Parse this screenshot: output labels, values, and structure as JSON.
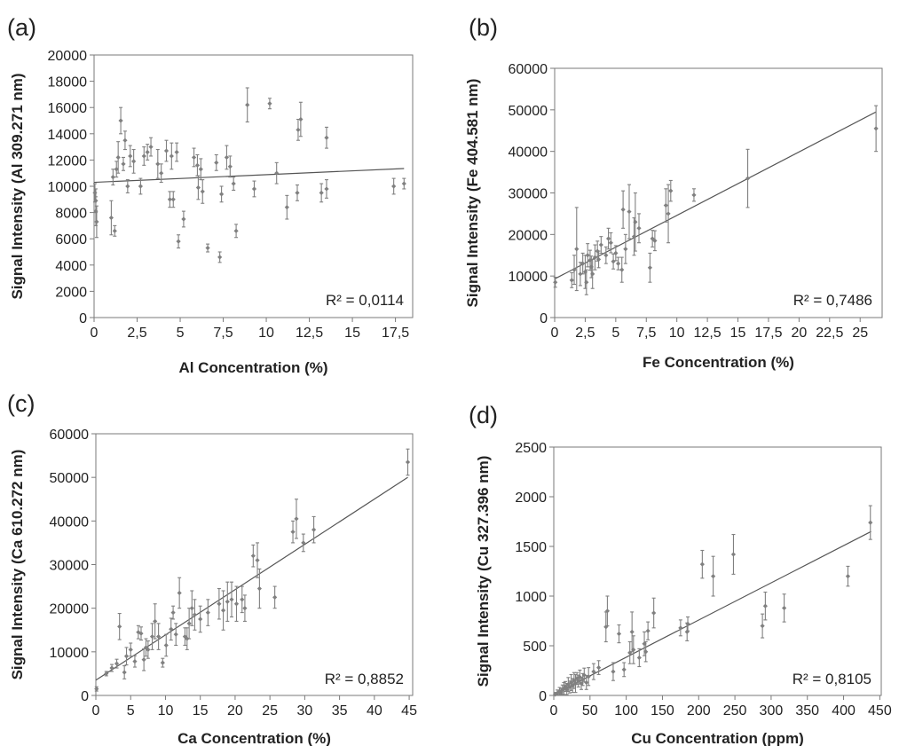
{
  "colors": {
    "marker": "#808080",
    "line": "#555555",
    "axis": "#7a7a7a",
    "text": "#222222"
  },
  "chart_data": [
    {
      "panel": "(a)",
      "type": "scatter",
      "xlabel": "Al Concentration (%)",
      "ylabel": "Signal Intensity (Al 309.271 nm)",
      "xlim": [
        0,
        18.5
      ],
      "ylim": [
        0,
        20000
      ],
      "xticks": [
        0,
        2.5,
        5,
        7.5,
        10,
        12.5,
        15,
        17.5
      ],
      "xtick_labels": [
        "0",
        "2,5",
        "5",
        "7,5",
        "10",
        "12,5",
        "15",
        "17,5"
      ],
      "yticks": [
        0,
        2000,
        4000,
        6000,
        8000,
        10000,
        12000,
        14000,
        16000,
        18000,
        20000
      ],
      "ytick_labels": [
        "0",
        "2000",
        "4000",
        "6000",
        "8000",
        "10000",
        "12000",
        "14000",
        "16000",
        "18000",
        "20000"
      ],
      "r2_label": "R² = 0,0114",
      "trendline": {
        "x": [
          0,
          18
        ],
        "y": [
          10300,
          11350
        ]
      },
      "points": [
        [
          0.05,
          9500,
          700
        ],
        [
          0.1,
          8900,
          900
        ],
        [
          0.1,
          8100,
          1100
        ],
        [
          0.15,
          7300,
          1200
        ],
        [
          1.0,
          7600,
          1300
        ],
        [
          1.1,
          10700,
          600
        ],
        [
          1.2,
          6600,
          400
        ],
        [
          1.3,
          11300,
          600
        ],
        [
          1.4,
          12200,
          1200
        ],
        [
          1.55,
          15000,
          1000
        ],
        [
          1.7,
          11700,
          500
        ],
        [
          1.8,
          13500,
          700
        ],
        [
          1.95,
          10000,
          500
        ],
        [
          2.1,
          12300,
          800
        ],
        [
          2.3,
          11900,
          900
        ],
        [
          2.7,
          10000,
          600
        ],
        [
          2.9,
          12300,
          700
        ],
        [
          3.1,
          12600,
          600
        ],
        [
          3.3,
          13000,
          700
        ],
        [
          3.7,
          11700,
          1100
        ],
        [
          3.9,
          11000,
          700
        ],
        [
          4.2,
          12700,
          800
        ],
        [
          4.4,
          9000,
          600
        ],
        [
          4.5,
          12300,
          1000
        ],
        [
          4.6,
          9000,
          600
        ],
        [
          4.8,
          12600,
          700
        ],
        [
          4.9,
          5800,
          500
        ],
        [
          5.2,
          7500,
          600
        ],
        [
          5.8,
          12200,
          700
        ],
        [
          6.0,
          11600,
          800
        ],
        [
          6.05,
          9900,
          900
        ],
        [
          6.2,
          11300,
          800
        ],
        [
          6.3,
          9600,
          900
        ],
        [
          6.6,
          5300,
          300
        ],
        [
          7.1,
          11800,
          600
        ],
        [
          7.3,
          4600,
          400
        ],
        [
          7.4,
          9400,
          600
        ],
        [
          7.7,
          12200,
          900
        ],
        [
          7.9,
          11500,
          800
        ],
        [
          8.1,
          10200,
          500
        ],
        [
          8.25,
          6600,
          500
        ],
        [
          8.9,
          16200,
          1300
        ],
        [
          9.3,
          9800,
          600
        ],
        [
          10.2,
          16300,
          400
        ],
        [
          10.6,
          11000,
          800
        ],
        [
          11.2,
          8400,
          900
        ],
        [
          11.8,
          9500,
          600
        ],
        [
          11.85,
          14300,
          800
        ],
        [
          12.0,
          15100,
          1300
        ],
        [
          13.2,
          9500,
          700
        ],
        [
          13.5,
          9800,
          700
        ],
        [
          13.5,
          13700,
          800
        ],
        [
          17.4,
          10000,
          600
        ],
        [
          18.0,
          10200,
          400
        ]
      ]
    },
    {
      "panel": "(b)",
      "type": "scatter",
      "xlabel": "Fe Concentration (%)",
      "ylabel": "Signal Intensity (Fe 404.581 nm)",
      "xlim": [
        0,
        26.8
      ],
      "ylim": [
        0,
        60000
      ],
      "xticks": [
        0,
        2.5,
        5,
        7.5,
        10,
        12.5,
        15,
        17.5,
        20,
        22.5,
        25
      ],
      "xtick_labels": [
        "0",
        "2,5",
        "5",
        "7,5",
        "10",
        "12,5",
        "15",
        "17,5",
        "20",
        "22,5",
        "25"
      ],
      "yticks": [
        0,
        10000,
        20000,
        30000,
        40000,
        50000,
        60000
      ],
      "ytick_labels": [
        "0",
        "10000",
        "20000",
        "30000",
        "40000",
        "50000",
        "60000"
      ],
      "r2_label": "R² = 0,7486",
      "trendline": {
        "x": [
          0,
          26.3
        ],
        "y": [
          9300,
          49500
        ]
      },
      "points": [
        [
          0.05,
          8500,
          1200
        ],
        [
          1.4,
          9000,
          1800
        ],
        [
          1.6,
          11500,
          3500
        ],
        [
          1.8,
          16500,
          10000
        ],
        [
          2.1,
          10500,
          2800
        ],
        [
          2.3,
          13000,
          2500
        ],
        [
          2.5,
          11000,
          4000
        ],
        [
          2.6,
          8500,
          3000
        ],
        [
          2.7,
          15000,
          2800
        ],
        [
          2.9,
          13800,
          2400
        ],
        [
          3.0,
          12200,
          2600
        ],
        [
          3.1,
          10500,
          3500
        ],
        [
          3.3,
          14500,
          3000
        ],
        [
          3.5,
          16000,
          2400
        ],
        [
          3.6,
          14000,
          2000
        ],
        [
          3.8,
          17500,
          2000
        ],
        [
          4.2,
          15000,
          2000
        ],
        [
          4.4,
          19000,
          2500
        ],
        [
          4.6,
          18000,
          2400
        ],
        [
          4.8,
          13500,
          1800
        ],
        [
          5.0,
          15500,
          1800
        ],
        [
          5.2,
          13000,
          1500
        ],
        [
          5.5,
          11500,
          3000
        ],
        [
          5.6,
          26000,
          4500
        ],
        [
          5.8,
          16500,
          3500
        ],
        [
          6.1,
          25500,
          6500
        ],
        [
          6.5,
          19500,
          4500
        ],
        [
          6.6,
          23000,
          7000
        ],
        [
          6.9,
          21500,
          3500
        ],
        [
          7.8,
          12000,
          3500
        ],
        [
          8.0,
          19000,
          2000
        ],
        [
          8.2,
          18500,
          2400
        ],
        [
          9.1,
          27000,
          4000
        ],
        [
          9.3,
          25000,
          7000
        ],
        [
          9.5,
          30500,
          2500
        ],
        [
          11.4,
          29500,
          1500
        ],
        [
          15.8,
          33500,
          7000
        ],
        [
          26.3,
          45500,
          5500
        ]
      ]
    },
    {
      "panel": "(c)",
      "type": "scatter",
      "xlabel": "Ca Concentration (%)",
      "ylabel": "Signal Intensity (Ca 610.272 nm)",
      "xlim": [
        0,
        45.5
      ],
      "ylim": [
        0,
        60000
      ],
      "xticks": [
        0,
        5,
        10,
        15,
        20,
        25,
        30,
        35,
        40,
        45
      ],
      "xtick_labels": [
        "0",
        "5",
        "10",
        "15",
        "20",
        "25",
        "30",
        "35",
        "40",
        "45"
      ],
      "yticks": [
        0,
        10000,
        20000,
        30000,
        40000,
        50000,
        60000
      ],
      "ytick_labels": [
        "0",
        "10000",
        "20000",
        "30000",
        "40000",
        "50000",
        "60000"
      ],
      "r2_label": "R² = 0,8852",
      "trendline": {
        "x": [
          0,
          44.8
        ],
        "y": [
          3500,
          50000
        ]
      },
      "points": [
        [
          0.1,
          1500,
          500
        ],
        [
          1.5,
          5000,
          500
        ],
        [
          2.3,
          6300,
          800
        ],
        [
          3.0,
          7300,
          1000
        ],
        [
          3.4,
          15800,
          3000
        ],
        [
          4.1,
          5300,
          1500
        ],
        [
          4.4,
          9000,
          2000
        ],
        [
          5.0,
          10500,
          1500
        ],
        [
          5.6,
          7800,
          1300
        ],
        [
          6.1,
          14500,
          1500
        ],
        [
          6.5,
          14200,
          1500
        ],
        [
          6.9,
          8200,
          2500
        ],
        [
          7.2,
          11000,
          2000
        ],
        [
          7.5,
          10500,
          2000
        ],
        [
          8.1,
          13500,
          3000
        ],
        [
          8.5,
          17000,
          4000
        ],
        [
          9.0,
          13500,
          3000
        ],
        [
          9.6,
          7500,
          1000
        ],
        [
          10.1,
          11500,
          2500
        ],
        [
          10.8,
          15200,
          2500
        ],
        [
          11.1,
          19000,
          1500
        ],
        [
          11.5,
          14000,
          2500
        ],
        [
          12.0,
          23500,
          3500
        ],
        [
          12.8,
          13500,
          2000
        ],
        [
          13.1,
          13000,
          2500
        ],
        [
          13.4,
          16500,
          3500
        ],
        [
          13.8,
          20000,
          4000
        ],
        [
          14.2,
          18500,
          3500
        ],
        [
          15.0,
          17500,
          3000
        ],
        [
          16.1,
          19000,
          3000
        ],
        [
          17.7,
          21000,
          3500
        ],
        [
          18.3,
          19500,
          4500
        ],
        [
          18.9,
          21500,
          4500
        ],
        [
          19.5,
          22000,
          4000
        ],
        [
          20.2,
          21000,
          4000
        ],
        [
          21.0,
          22000,
          3000
        ],
        [
          21.4,
          20000,
          3000
        ],
        [
          22.6,
          32000,
          2500
        ],
        [
          23.2,
          31000,
          4000
        ],
        [
          23.5,
          24500,
          4500
        ],
        [
          25.7,
          22500,
          2500
        ],
        [
          28.3,
          37500,
          2500
        ],
        [
          28.8,
          40500,
          4500
        ],
        [
          29.8,
          35000,
          2000
        ],
        [
          31.3,
          38000,
          3000
        ],
        [
          44.8,
          53500,
          3000
        ]
      ]
    },
    {
      "panel": "(d)",
      "type": "scatter",
      "xlabel": "Cu Concentration (ppm)",
      "ylabel": "Signal Intensity (Cu 327.396 nm)",
      "xlim": [
        0,
        452
      ],
      "ylim": [
        0,
        2500
      ],
      "xticks": [
        0,
        50,
        100,
        150,
        200,
        250,
        300,
        350,
        400,
        450
      ],
      "xtick_labels": [
        "0",
        "50",
        "100",
        "150",
        "200",
        "250",
        "300",
        "350",
        "400",
        "450"
      ],
      "yticks": [
        0,
        500,
        1000,
        1500,
        2000,
        2500
      ],
      "ytick_labels": [
        "0",
        "500",
        "1000",
        "1500",
        "2000",
        "2500"
      ],
      "r2_label": "R² = 0,8105",
      "trendline": {
        "x": [
          0,
          438
        ],
        "y": [
          10,
          1650
        ]
      },
      "points": [
        [
          2,
          10,
          20
        ],
        [
          5,
          25,
          30
        ],
        [
          8,
          40,
          40
        ],
        [
          10,
          30,
          40
        ],
        [
          12,
          55,
          50
        ],
        [
          14,
          70,
          60
        ],
        [
          16,
          90,
          50
        ],
        [
          18,
          60,
          60
        ],
        [
          20,
          110,
          70
        ],
        [
          22,
          85,
          60
        ],
        [
          24,
          130,
          80
        ],
        [
          26,
          100,
          70
        ],
        [
          28,
          150,
          80
        ],
        [
          30,
          120,
          90
        ],
        [
          32,
          170,
          60
        ],
        [
          34,
          145,
          60
        ],
        [
          36,
          185,
          70
        ],
        [
          38,
          120,
          60
        ],
        [
          40,
          160,
          60
        ],
        [
          42,
          205,
          70
        ],
        [
          45,
          130,
          70
        ],
        [
          48,
          190,
          90
        ],
        [
          55,
          240,
          80
        ],
        [
          62,
          280,
          70
        ],
        [
          72,
          690,
          150
        ],
        [
          74,
          850,
          150
        ],
        [
          82,
          240,
          90
        ],
        [
          90,
          620,
          90
        ],
        [
          97,
          260,
          70
        ],
        [
          105,
          430,
          110
        ],
        [
          108,
          640,
          200
        ],
        [
          110,
          460,
          140
        ],
        [
          118,
          380,
          90
        ],
        [
          125,
          520,
          120
        ],
        [
          127,
          440,
          100
        ],
        [
          130,
          650,
          90
        ],
        [
          138,
          830,
          150
        ],
        [
          175,
          680,
          80
        ],
        [
          184,
          640,
          90
        ],
        [
          185,
          720,
          70
        ],
        [
          205,
          1320,
          140
        ],
        [
          220,
          1200,
          200
        ],
        [
          248,
          1420,
          200
        ],
        [
          288,
          700,
          120
        ],
        [
          292,
          900,
          140
        ],
        [
          318,
          880,
          140
        ],
        [
          406,
          1200,
          100
        ],
        [
          437,
          1740,
          170
        ]
      ]
    }
  ]
}
